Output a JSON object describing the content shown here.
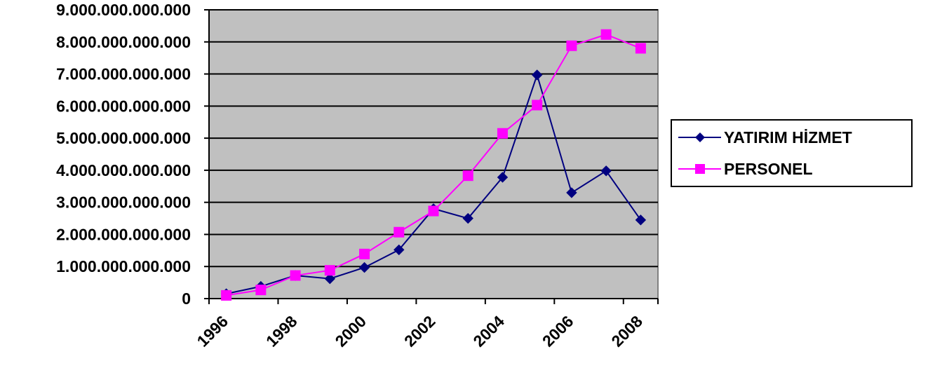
{
  "chart_data": {
    "type": "line",
    "title": "",
    "xlabel": "",
    "ylabel": "",
    "x": [
      1996,
      1997,
      1998,
      1999,
      2000,
      2001,
      2002,
      2003,
      2004,
      2005,
      2006,
      2007,
      2008
    ],
    "x_tick_labels": [
      "1996",
      "1998",
      "2000",
      "2002",
      "2004",
      "2006",
      "2008"
    ],
    "y_tick_labels": [
      "0",
      "1.000.000.000.000",
      "2.000.000.000.000",
      "3.000.000.000.000",
      "4.000.000.000.000",
      "5.000.000.000.000",
      "6.000.000.000.000",
      "7.000.000.000.000",
      "8.000.000.000.000",
      "9.000.000.000.000"
    ],
    "ylim": [
      0,
      9000000000000
    ],
    "grid": true,
    "legend_position": "right",
    "plot_background": "#C0C0C0",
    "series": [
      {
        "name": "YATIRIM HİZMET",
        "color": "#000080",
        "marker": "diamond",
        "values": [
          150000000000,
          380000000000,
          720000000000,
          620000000000,
          970000000000,
          1520000000000,
          2800000000000,
          2500000000000,
          3780000000000,
          6970000000000,
          3300000000000,
          3980000000000,
          2450000000000
        ]
      },
      {
        "name": "PERSONEL",
        "color": "#FF00FF",
        "marker": "square",
        "values": [
          100000000000,
          270000000000,
          720000000000,
          880000000000,
          1390000000000,
          2070000000000,
          2730000000000,
          3830000000000,
          5150000000000,
          6030000000000,
          7880000000000,
          8230000000000,
          7800000000000
        ]
      }
    ]
  }
}
